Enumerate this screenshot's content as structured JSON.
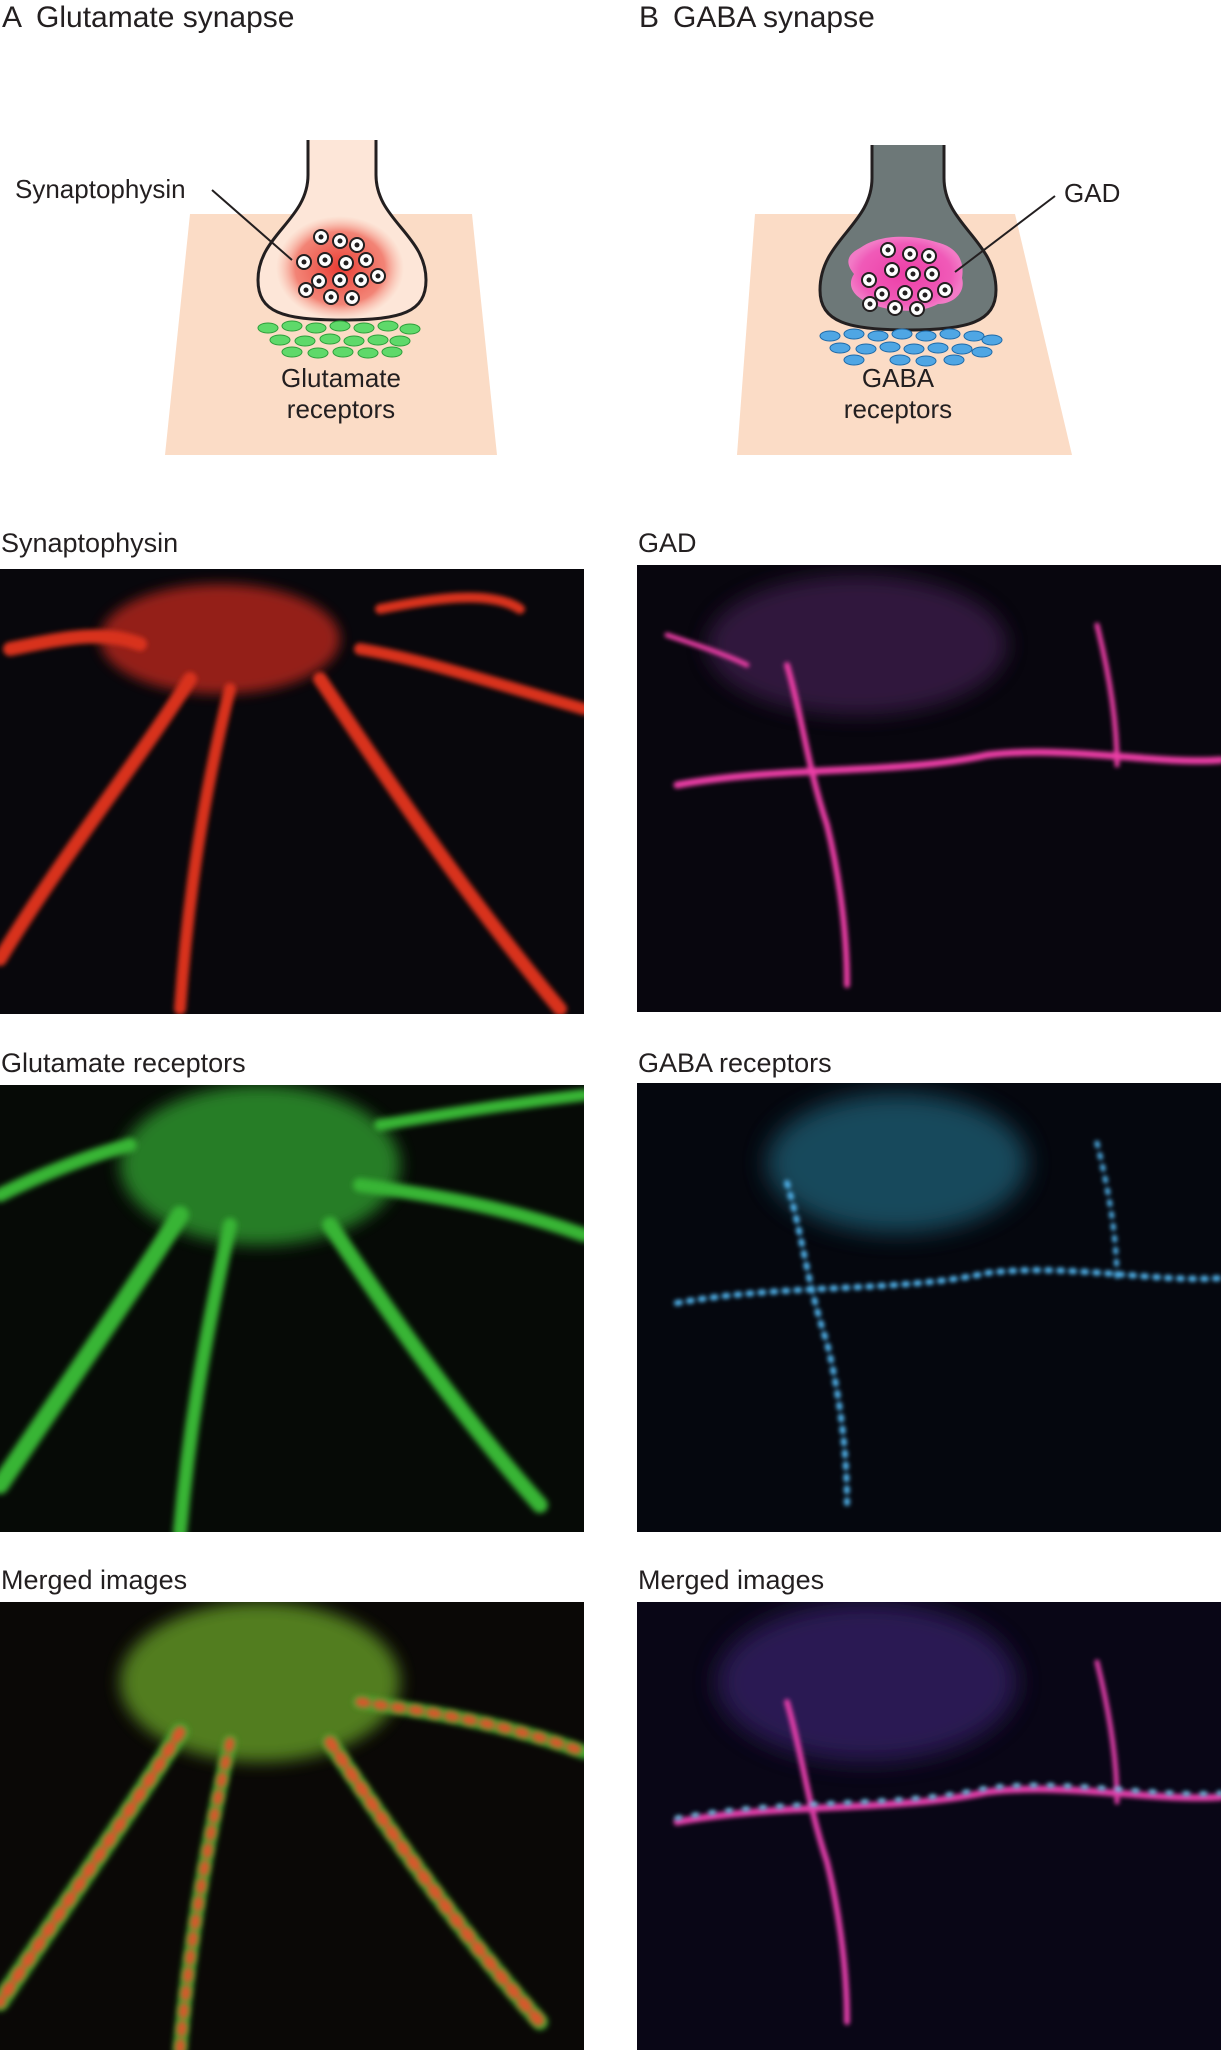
{
  "panel_a": {
    "letter": "A",
    "title": "Glutamate synapse",
    "diagram": {
      "callout": "Synaptophysin",
      "receptor_label_line1": "Glutamate",
      "receptor_label_line2": "receptors"
    },
    "images": [
      {
        "label": "Synaptophysin",
        "stain": "red"
      },
      {
        "label": "Glutamate receptors",
        "stain": "green"
      },
      {
        "label": "Merged images",
        "stain": "red+green"
      }
    ]
  },
  "panel_b": {
    "letter": "B",
    "title": "GABA synapse",
    "diagram": {
      "callout": "GAD",
      "receptor_label_line1": "GABA",
      "receptor_label_line2": "receptors"
    },
    "images": [
      {
        "label": "GAD",
        "stain": "magenta"
      },
      {
        "label": "GABA receptors",
        "stain": "cyan"
      },
      {
        "label": "Merged images",
        "stain": "magenta+cyan"
      }
    ]
  },
  "colors": {
    "background_tint": "#fbdcc6",
    "glut_terminal": "#fde6d8",
    "gaba_terminal": "#6d7878",
    "synaptophysin": "#e8322a",
    "gad": "#ec3ea6",
    "glut_receptor": "#5fd96a",
    "gaba_receptor": "#4fa6e4"
  }
}
